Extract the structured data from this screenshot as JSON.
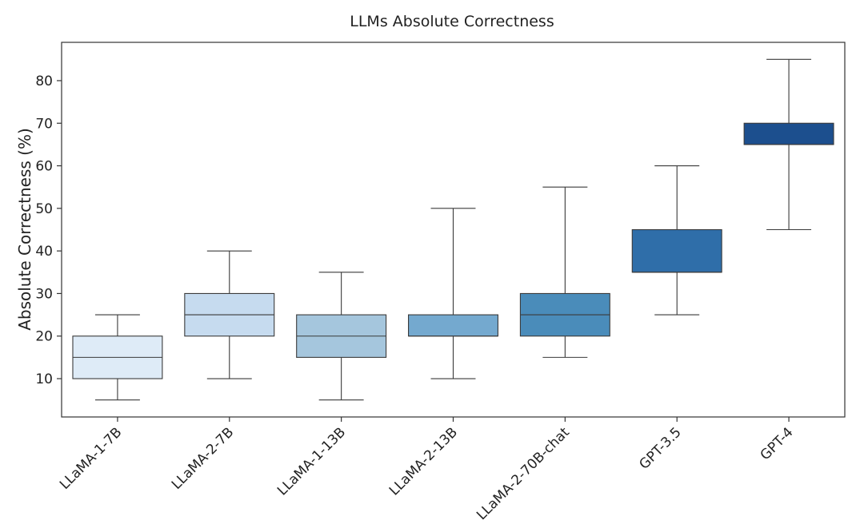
{
  "chart_data": {
    "type": "box",
    "title": "LLMs Absolute Correctness",
    "xlabel": "",
    "ylabel": "Absolute Correctness (%)",
    "ylim": [
      1,
      89
    ],
    "yticks": [
      10,
      20,
      30,
      40,
      50,
      60,
      70,
      80
    ],
    "grid": false,
    "legend": "none",
    "categories": [
      "LLaMA-1-7B",
      "LLaMA-2-7B",
      "LLaMA-1-13B",
      "LLaMA-2-13B",
      "LLaMA-2-70B-chat",
      "GPT-3.5",
      "GPT-4"
    ],
    "boxes": [
      {
        "min": 5,
        "q1": 10,
        "median": 15,
        "q3": 20,
        "max": 25
      },
      {
        "min": 10,
        "q1": 20,
        "median": 25,
        "q3": 30,
        "max": 40
      },
      {
        "min": 5,
        "q1": 15,
        "median": 20,
        "q3": 25,
        "max": 35
      },
      {
        "min": 10,
        "q1": 20,
        "median": 20,
        "q3": 25,
        "max": 50
      },
      {
        "min": 15,
        "q1": 20,
        "median": 25,
        "q3": 30,
        "max": 55
      },
      {
        "min": 25,
        "q1": 35,
        "median": 35,
        "q3": 45,
        "max": 60
      },
      {
        "min": 45,
        "q1": 65,
        "median": 65,
        "q3": 70,
        "max": 85
      }
    ],
    "colors": [
      "#deebf7",
      "#c6dbef",
      "#a5c6dd",
      "#74a9cf",
      "#4a8cba",
      "#2f6ea9",
      "#1c4f8e"
    ]
  }
}
